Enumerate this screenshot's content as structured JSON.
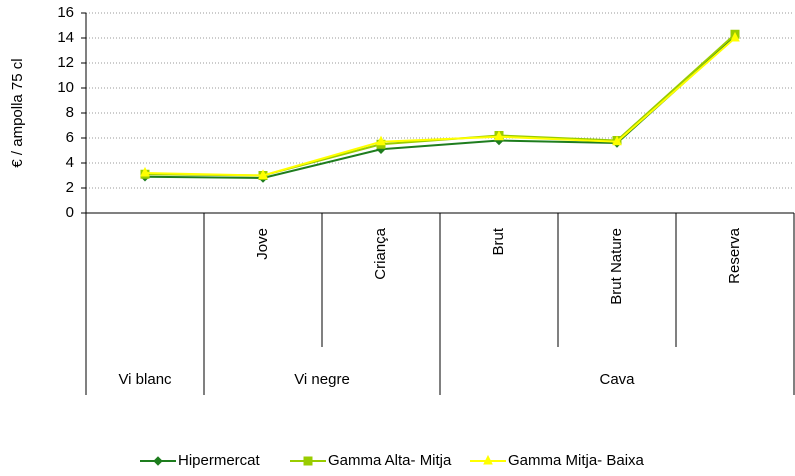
{
  "chart_data": {
    "type": "line",
    "y_label": "€ / ampolla 75 cl",
    "categories": [
      null,
      "Jove",
      "Criança",
      "Brut",
      "Brut Nature",
      "Reserva"
    ],
    "groups": [
      {
        "label": "Vi blanc",
        "span": 1
      },
      {
        "label": "Vi negre",
        "span": 2
      },
      {
        "label": "Cava",
        "span": 3
      }
    ],
    "series": [
      {
        "name": "Hipermercat",
        "color": "#1e7d1e",
        "marker": "diamond",
        "values": [
          2.9,
          2.8,
          5.1,
          5.8,
          5.6,
          14.1
        ]
      },
      {
        "name": "Gamma Alta- Mitja",
        "color": "#99cc00",
        "marker": "square",
        "values": [
          3.1,
          3.0,
          5.5,
          6.2,
          5.8,
          14.3
        ]
      },
      {
        "name": "Gamma Mitja- Baixa",
        "color": "#ffff00",
        "marker": "triangle",
        "values": [
          3.2,
          3.0,
          5.7,
          6.1,
          5.7,
          14.0
        ]
      }
    ],
    "ylim": [
      0,
      16
    ],
    "yticks": [
      0,
      2,
      4,
      6,
      8,
      10,
      12,
      14,
      16
    ],
    "grid": true,
    "legend": "bottom"
  }
}
